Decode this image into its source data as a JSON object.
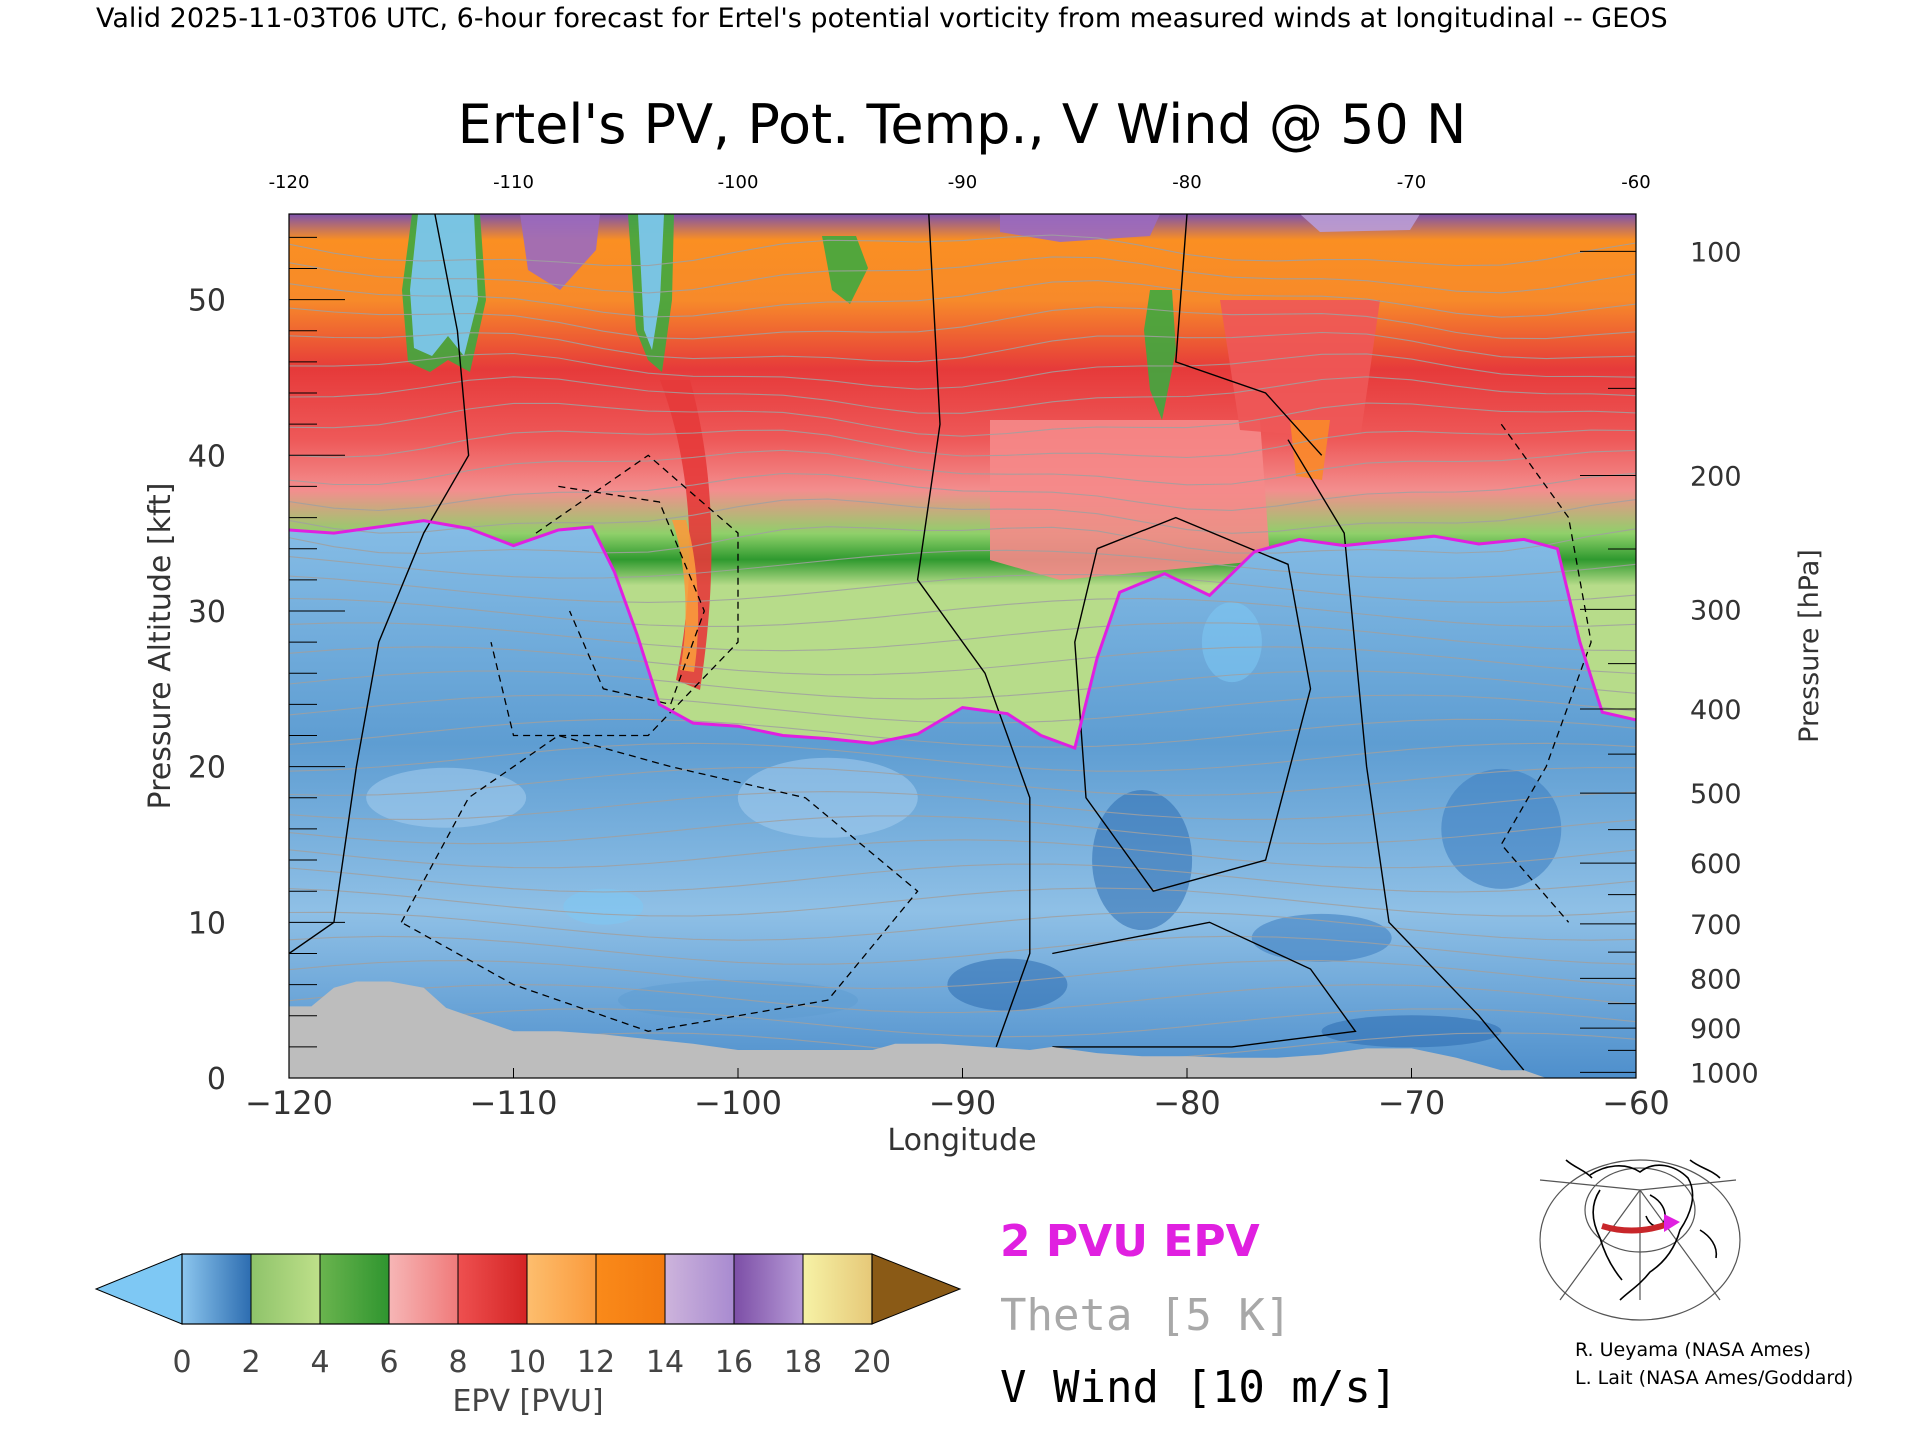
{
  "header": {
    "caption": "Valid 2025-11-03T06 UTC, 6-hour forecast for Ertel's potential vorticity from measured winds at longitudinal -- GEOS"
  },
  "chart_data": {
    "type": "heatmap",
    "title": "Ertel's PV, Pot. Temp., V Wind @ 50 N",
    "xlabel": "Longitude",
    "ylabel": "Pressure Altitude [kft]",
    "y2label": "Pressure [hPa]",
    "xlim": [
      -120,
      -60
    ],
    "ylim": [
      0,
      55.5
    ],
    "x_ticks": [
      -120,
      -110,
      -100,
      -90,
      -80,
      -70,
      -60
    ],
    "x_tick_labels": [
      "−120",
      "−110",
      "−100",
      "−90",
      "−80",
      "−70",
      "−60"
    ],
    "x_top_tick_labels": [
      "-120",
      "-110",
      "-100",
      "-90",
      "-80",
      "-70",
      "-60"
    ],
    "y_ticks": [
      0,
      10,
      20,
      30,
      40,
      50
    ],
    "y_tick_labels": [
      "0",
      "10",
      "20",
      "30",
      "40",
      "50"
    ],
    "pressure_ticks": [
      {
        "label": "100",
        "kft": 53.1
      },
      {
        "label": "200",
        "kft": 38.7
      },
      {
        "label": "300",
        "kft": 30.1
      },
      {
        "label": "400",
        "kft": 23.7
      },
      {
        "label": "500",
        "kft": 18.3
      },
      {
        "label": "600",
        "kft": 13.8
      },
      {
        "label": "700",
        "kft": 9.9
      },
      {
        "label": "800",
        "kft": 6.4
      },
      {
        "label": "900",
        "kft": 3.2
      },
      {
        "label": "1000",
        "kft": 0.36
      }
    ],
    "tropopause_kft": [
      [
        -120,
        35.2
      ],
      [
        -118,
        35.0
      ],
      [
        -116,
        35.4
      ],
      [
        -114,
        35.8
      ],
      [
        -112,
        35.3
      ],
      [
        -110,
        34.2
      ],
      [
        -108,
        35.2
      ],
      [
        -106.5,
        35.4
      ],
      [
        -105.5,
        32.5
      ],
      [
        -104.5,
        28.5
      ],
      [
        -103.5,
        24.0
      ],
      [
        -102,
        22.8
      ],
      [
        -100,
        22.6
      ],
      [
        -98,
        22.0
      ],
      [
        -96,
        21.8
      ],
      [
        -94,
        21.5
      ],
      [
        -92,
        22.1
      ],
      [
        -90,
        23.8
      ],
      [
        -88,
        23.4
      ],
      [
        -86.5,
        22.0
      ],
      [
        -85,
        21.2
      ],
      [
        -84,
        27.0
      ],
      [
        -83,
        31.2
      ],
      [
        -81,
        32.4
      ],
      [
        -79,
        31.0
      ],
      [
        -77,
        33.8
      ],
      [
        -75,
        34.6
      ],
      [
        -73,
        34.2
      ],
      [
        -71,
        34.5
      ],
      [
        -69,
        34.8
      ],
      [
        -67,
        34.3
      ],
      [
        -65,
        34.6
      ],
      [
        -63.5,
        34.0
      ],
      [
        -62.5,
        28.0
      ],
      [
        -61.5,
        23.5
      ],
      [
        -60,
        23.0
      ]
    ],
    "surface_kft": [
      [
        -120,
        4.6
      ],
      [
        -119,
        4.6
      ],
      [
        -118,
        5.8
      ],
      [
        -117,
        6.2
      ],
      [
        -115.5,
        6.2
      ],
      [
        -114,
        5.8
      ],
      [
        -113,
        4.5
      ],
      [
        -112,
        4.0
      ],
      [
        -110,
        3.0
      ],
      [
        -108,
        3.0
      ],
      [
        -106,
        2.8
      ],
      [
        -104,
        2.5
      ],
      [
        -102,
        2.2
      ],
      [
        -100,
        1.8
      ],
      [
        -98,
        1.8
      ],
      [
        -96,
        1.8
      ],
      [
        -94,
        1.8
      ],
      [
        -93,
        2.2
      ],
      [
        -91,
        2.2
      ],
      [
        -89,
        2.0
      ],
      [
        -87,
        1.8
      ],
      [
        -86,
        2.0
      ],
      [
        -84,
        1.6
      ],
      [
        -82,
        1.4
      ],
      [
        -80,
        1.4
      ],
      [
        -78,
        1.3
      ],
      [
        -76,
        1.3
      ],
      [
        -74,
        1.5
      ],
      [
        -72,
        1.9
      ],
      [
        -70,
        1.9
      ],
      [
        -68,
        1.3
      ],
      [
        -66,
        0.5
      ],
      [
        -65,
        0.5
      ],
      [
        -64,
        0.0
      ],
      [
        -60,
        0.0
      ]
    ],
    "colorbar": {
      "label": "EPV [PVU]",
      "range": [
        0,
        20
      ],
      "ticks": [
        "0",
        "2",
        "4",
        "6",
        "8",
        "10",
        "12",
        "14",
        "16",
        "18",
        "20"
      ],
      "under_color": "#7ec8f4",
      "over_color": "#8a5a16",
      "bands": [
        [
          "#8cc6ee",
          "#2c6cb0"
        ],
        [
          "#8ec36a",
          "#bfe08a"
        ],
        [
          "#6ab44e",
          "#2f952f"
        ],
        [
          "#f6b6b6",
          "#f07a7a"
        ],
        [
          "#ee5050",
          "#d42424"
        ],
        [
          "#fdbe6e",
          "#fa9a3c"
        ],
        [
          "#fa8a1a",
          "#f27a10"
        ],
        [
          "#cdb4dc",
          "#a88ad0"
        ],
        [
          "#7c4ea6",
          "#b89cd8"
        ],
        [
          "#f6f2a6",
          "#e6c878"
        ]
      ]
    },
    "legend": {
      "epv_contour": "2 PVU EPV",
      "theta": "Theta [5 K]",
      "v_wind": "V Wind [10 m/s]"
    },
    "colors": {
      "tropopause": "#e020e0",
      "theta": "#a0a0a0",
      "vwind": "#000000",
      "surface": "#bdbdbd",
      "low_pv": "#7fb4dc",
      "mid_pv_green": "#3fa83f",
      "high_pv_red": "#f07070"
    }
  },
  "inset_map": {
    "credits": [
      "R. Ueyama (NASA Ames)",
      "L. Lait (NASA Ames/Goddard)"
    ]
  }
}
